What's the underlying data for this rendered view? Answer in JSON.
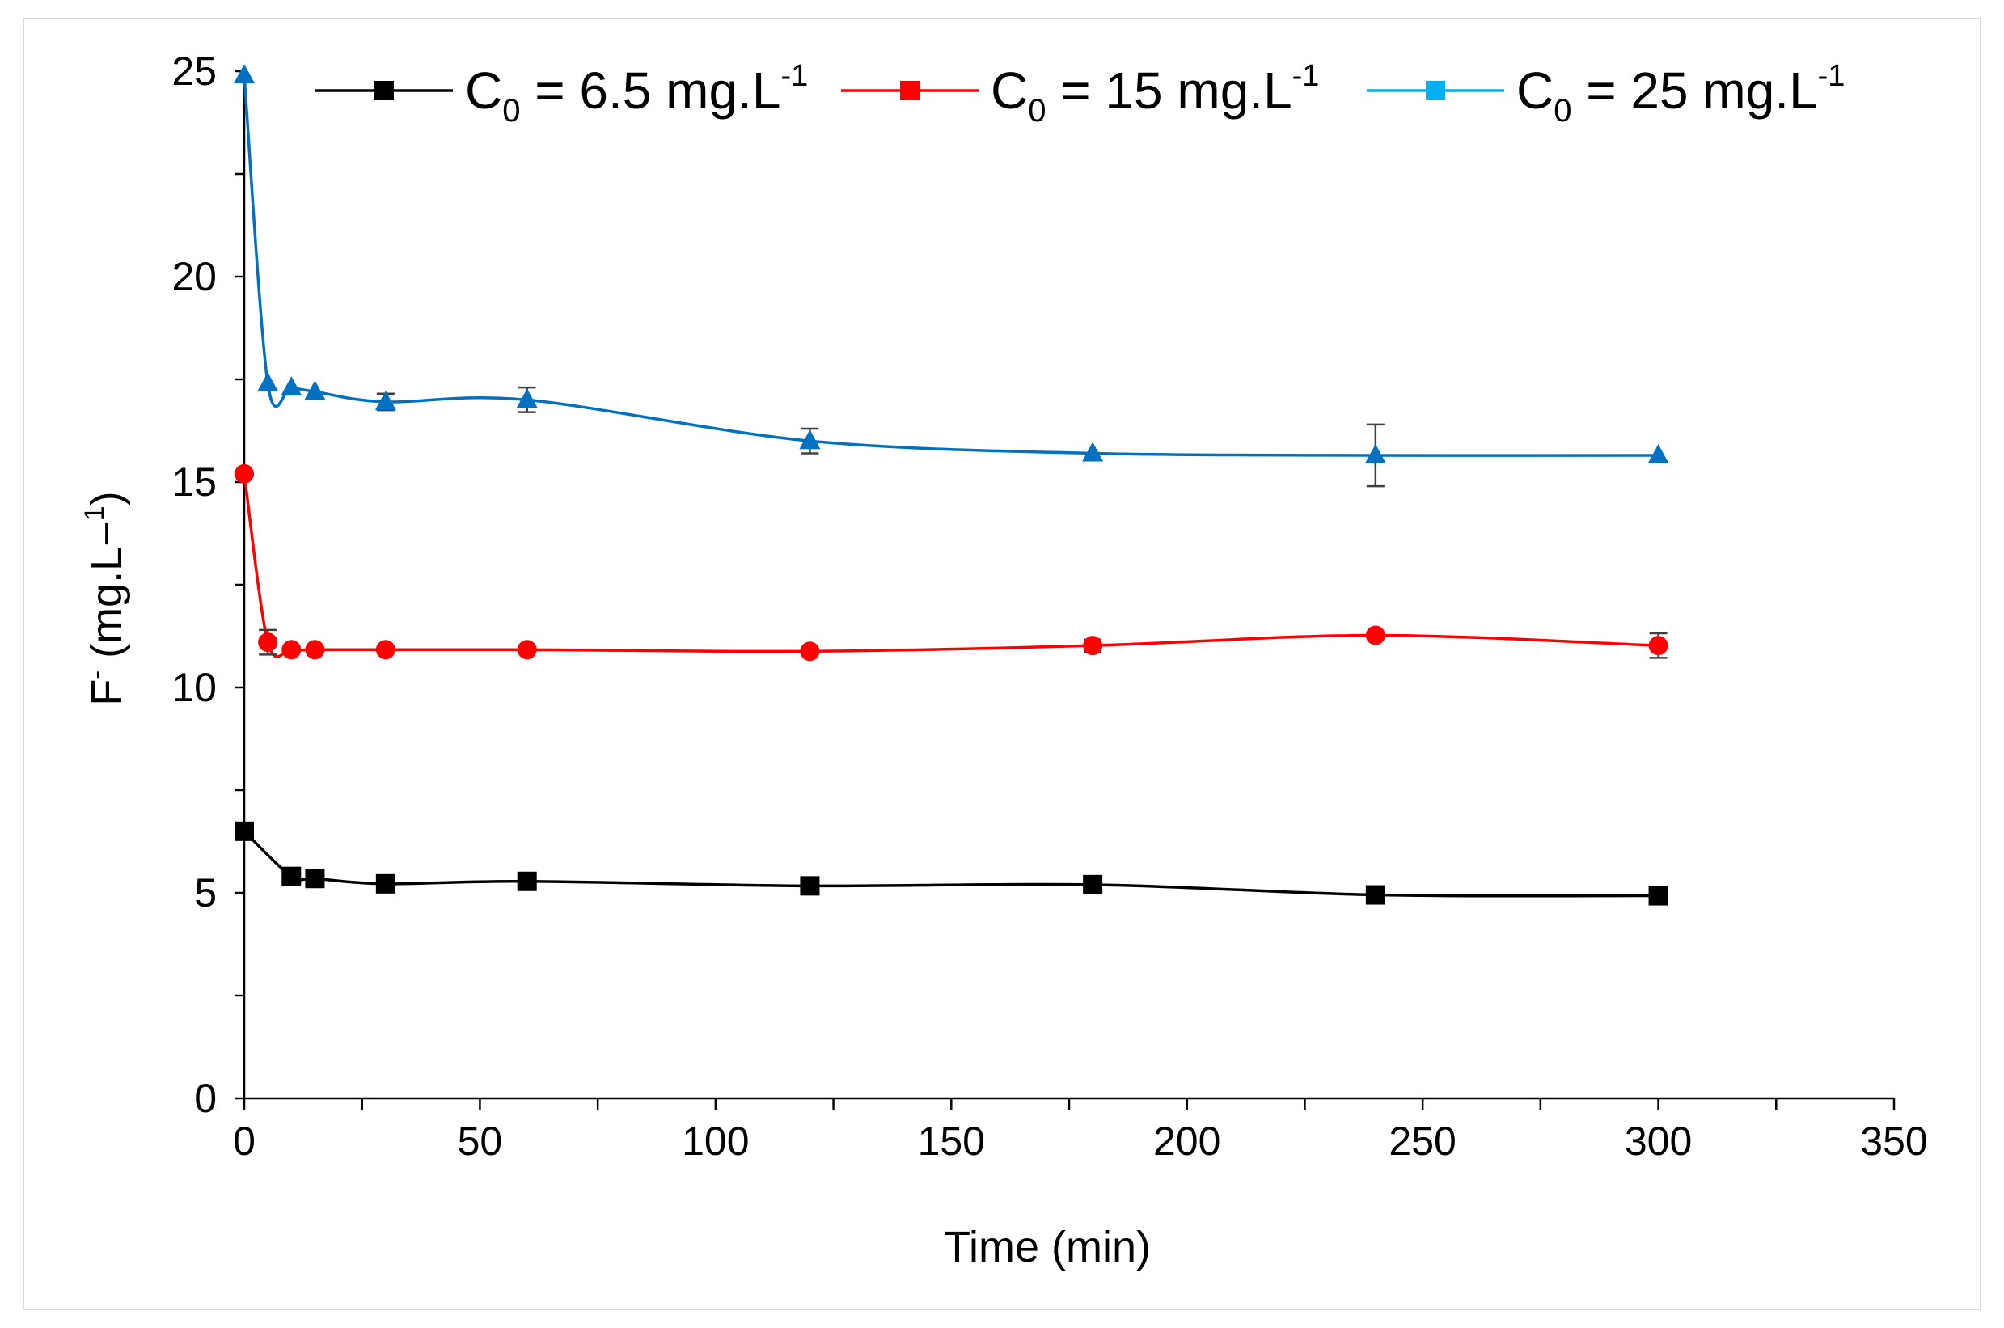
{
  "chart_data": {
    "type": "line",
    "title": "",
    "xlabel": "Time (min)",
    "ylabel": {
      "prefix": "F",
      "sup": "-",
      "unit": " (mg.L−",
      "unit_sup": "1",
      "close": ")"
    },
    "xlim": [
      0,
      350
    ],
    "ylim": [
      0,
      25
    ],
    "x_ticks": [
      "0",
      "50",
      "100",
      "150",
      "200",
      "250",
      "300",
      "350"
    ],
    "y_ticks": [
      "0",
      "5",
      "10",
      "15",
      "20",
      "25"
    ],
    "grid": false,
    "legend_position": "top",
    "series": [
      {
        "name": "C0 = 6.5 mg.L-1",
        "legend": {
          "base": "C",
          "sub": "0",
          "rest": " = 6.5 mg.L",
          "sup": "-1"
        },
        "color": "#000000",
        "marker": "square",
        "legend_marker": "square",
        "x": [
          0,
          10,
          15,
          30,
          60,
          120,
          180,
          240,
          300
        ],
        "y": [
          6.5,
          5.4,
          5.35,
          5.22,
          5.28,
          5.17,
          5.2,
          4.95,
          4.93
        ],
        "err": [
          0,
          0,
          0,
          0,
          0,
          0,
          0,
          0,
          0
        ]
      },
      {
        "name": "C0 = 15 mg.L-1",
        "legend": {
          "base": "C",
          "sub": "0",
          "rest": " = 15 mg.L",
          "sup": "-1"
        },
        "color": "#ff0000",
        "marker": "circle",
        "legend_marker": "square",
        "x": [
          0,
          5,
          10,
          15,
          30,
          60,
          120,
          180,
          240,
          300
        ],
        "y": [
          15.2,
          11.1,
          10.92,
          10.92,
          10.92,
          10.92,
          10.88,
          11.02,
          11.27,
          11.02
        ],
        "err": [
          0,
          0.3,
          0,
          0,
          0,
          0,
          0,
          0.15,
          0,
          0.3
        ]
      },
      {
        "name": "C0 = 25 mg.L-1",
        "legend": {
          "base": "C",
          "sub": "0",
          "rest": " = 25 mg.L",
          "sup": "-1"
        },
        "color": "#0070c0",
        "legend_color": "#00b0f0",
        "marker": "triangle",
        "legend_marker": "square",
        "x": [
          0,
          5,
          10,
          15,
          30,
          60,
          120,
          180,
          240,
          300
        ],
        "y": [
          24.9,
          17.4,
          17.3,
          17.2,
          16.95,
          17.0,
          16.0,
          15.7,
          15.65,
          15.65
        ],
        "err": [
          0,
          0,
          0,
          0,
          0.2,
          0.3,
          0.3,
          0,
          0.75,
          0
        ]
      }
    ]
  }
}
